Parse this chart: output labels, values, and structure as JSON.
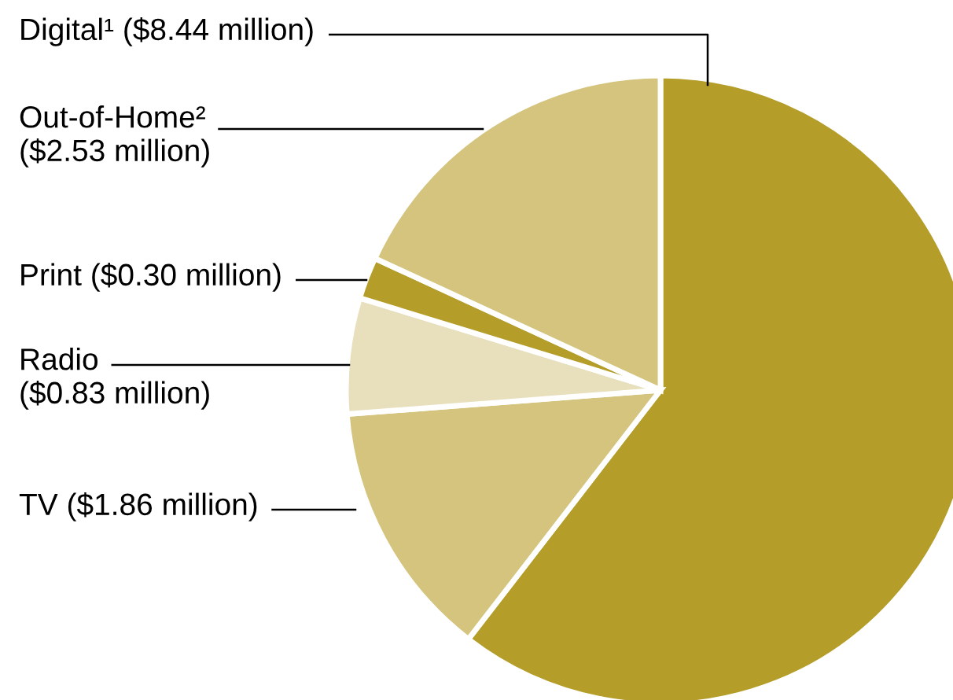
{
  "chart_data": {
    "type": "pie",
    "categories": [
      "Digital¹ ($8.44 million)",
      "TV ($1.86 million)",
      "Radio\n($0.83 million)",
      "Print ($0.30 million)",
      "Out-of-Home²\n($2.53 million)"
    ],
    "values": [
      8.44,
      1.86,
      0.83,
      0.3,
      2.53
    ],
    "colors": [
      "#b59d2a",
      "#d4c47e",
      "#e8e0bd",
      "#b59d2a",
      "#d4c47e"
    ],
    "legend": false
  }
}
